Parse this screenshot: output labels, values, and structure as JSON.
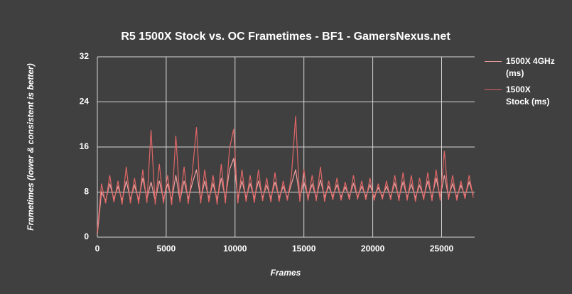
{
  "chart_data": {
    "type": "line",
    "title": "R5 1500X Stock vs. OC Frametimes - BF1 - GamersNexus.net",
    "x_label": "Frames",
    "y_label": "Frametimes (lower & consistent is better)",
    "x": [
      0,
      300,
      600,
      900,
      1200,
      1500,
      1800,
      2100,
      2400,
      2700,
      3000,
      3300,
      3600,
      3900,
      4200,
      4500,
      4800,
      5100,
      5400,
      5700,
      6000,
      6300,
      6600,
      6900,
      7200,
      7500,
      7800,
      8100,
      8400,
      8700,
      9000,
      9300,
      9600,
      9900,
      10200,
      10500,
      10800,
      11100,
      11400,
      11700,
      12000,
      12300,
      12600,
      12900,
      13200,
      13500,
      13800,
      14100,
      14400,
      14700,
      15000,
      15300,
      15600,
      15900,
      16200,
      16500,
      16800,
      17100,
      17400,
      17700,
      18000,
      18300,
      18600,
      18900,
      19200,
      19500,
      19800,
      20100,
      20400,
      20700,
      21000,
      21300,
      21600,
      21900,
      22200,
      22500,
      22800,
      23100,
      23400,
      23700,
      24000,
      24300,
      24600,
      24900,
      25200,
      25500,
      25800,
      26100,
      26400,
      26700,
      27000,
      27300
    ],
    "series": [
      {
        "name": "1500X 4GHz (ms)",
        "color": "#f2a0a0",
        "values": [
          0.5,
          8,
          6.5,
          9.5,
          6.8,
          9,
          6.5,
          10,
          6.7,
          9.2,
          6.6,
          10.5,
          6.8,
          9.8,
          6.5,
          10,
          6.7,
          9.5,
          6.6,
          11,
          6.5,
          10,
          6.8,
          9.6,
          12,
          6.6,
          10,
          6.9,
          9.5,
          6.7,
          10.5,
          6.8,
          12,
          14,
          6.9,
          10,
          7,
          9.5,
          6.9,
          10,
          7,
          9.2,
          6.9,
          9.8,
          7,
          9,
          7,
          9.5,
          12,
          7,
          9.8,
          7.1,
          9.4,
          7,
          10.2,
          7.1,
          9,
          7.2,
          9.3,
          7.1,
          8.9,
          7.2,
          9.5,
          7.1,
          9,
          7.2,
          9.3,
          7.1,
          8.8,
          7.2,
          9,
          7.1,
          9.6,
          7,
          9.8,
          7.1,
          9.4,
          7,
          9.2,
          7.1,
          10,
          7,
          10.5,
          7.1,
          11,
          7.2,
          9.5,
          7.1,
          9.2,
          7.3,
          9.8,
          7.5
        ]
      },
      {
        "name": "1500X Stock (ms)",
        "color": "#e06666",
        "values": [
          1,
          9.5,
          6,
          11,
          6.2,
          10,
          5.8,
          12.5,
          6,
          10.5,
          5.9,
          12,
          6.1,
          19,
          5.8,
          13,
          6,
          11,
          5.7,
          18,
          6.2,
          12.5,
          5.9,
          11.5,
          19.5,
          6,
          12,
          6.2,
          11,
          5.8,
          13,
          6,
          15.7,
          19.2,
          6,
          12,
          6.3,
          11,
          6.1,
          12,
          6.4,
          10.5,
          6.2,
          11.5,
          6.3,
          10,
          6.5,
          11,
          21.5,
          6.3,
          12,
          6.5,
          11,
          6.4,
          12.5,
          6.3,
          10,
          6.6,
          10.5,
          6.5,
          9.8,
          6.6,
          11,
          6.7,
          10,
          6.6,
          10.5,
          6.5,
          9.5,
          6.7,
          10,
          6.6,
          11,
          6.4,
          11.5,
          6.5,
          11,
          6.3,
          10.5,
          6.6,
          11.5,
          6.4,
          12,
          6.5,
          15.3,
          6.6,
          11,
          6.5,
          10,
          6.8,
          11,
          7
        ]
      }
    ],
    "xlim": [
      0,
      27400
    ],
    "xticks": [
      0,
      5000,
      10000,
      15000,
      20000,
      25000
    ],
    "ylim": [
      0,
      32
    ],
    "yticks": [
      0,
      8,
      16,
      24,
      32
    ],
    "grid": true,
    "legend": "right"
  }
}
